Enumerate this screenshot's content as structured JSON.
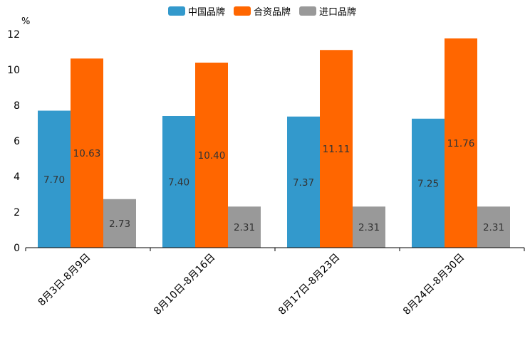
{
  "chart_data": {
    "type": "bar",
    "unit": "%",
    "categories": [
      "8月3日-8月9日",
      "8月10日-8月16日",
      "8月17日-8月23日",
      "8月24日-8月30日"
    ],
    "series": [
      {
        "name": "中国品牌",
        "color": "#3399cc",
        "values": [
          7.7,
          7.4,
          7.37,
          7.25
        ],
        "labels": [
          "7.70",
          "7.40",
          "7.37",
          "7.25"
        ]
      },
      {
        "name": "合资品牌",
        "color": "#ff6600",
        "values": [
          10.63,
          10.4,
          11.11,
          11.76
        ],
        "labels": [
          "10.63",
          "10.40",
          "11.11",
          "11.76"
        ]
      },
      {
        "name": "进口品牌",
        "color": "#999999",
        "values": [
          2.73,
          2.31,
          2.31,
          2.31
        ],
        "labels": [
          "2.73",
          "2.31",
          "2.31",
          "2.31"
        ]
      }
    ],
    "yticks": [
      "0",
      "2",
      "4",
      "6",
      "8",
      "10",
      "12"
    ],
    "ylim": [
      0,
      12
    ],
    "legend_position": "top-center",
    "grid": false
  }
}
